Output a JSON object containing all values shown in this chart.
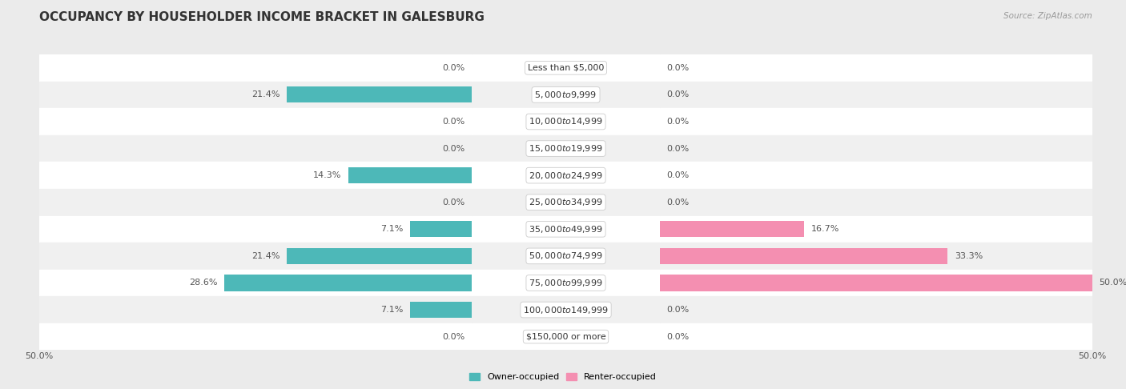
{
  "title": "OCCUPANCY BY HOUSEHOLDER INCOME BRACKET IN GALESBURG",
  "source": "Source: ZipAtlas.com",
  "categories": [
    "Less than $5,000",
    "$5,000 to $9,999",
    "$10,000 to $14,999",
    "$15,000 to $19,999",
    "$20,000 to $24,999",
    "$25,000 to $34,999",
    "$35,000 to $49,999",
    "$50,000 to $74,999",
    "$75,000 to $99,999",
    "$100,000 to $149,999",
    "$150,000 or more"
  ],
  "owner_values": [
    0.0,
    21.4,
    0.0,
    0.0,
    14.3,
    0.0,
    7.1,
    21.4,
    28.6,
    7.1,
    0.0
  ],
  "renter_values": [
    0.0,
    0.0,
    0.0,
    0.0,
    0.0,
    0.0,
    16.7,
    33.3,
    50.0,
    0.0,
    0.0
  ],
  "owner_color": "#4db8b8",
  "renter_color": "#f48fb1",
  "label_color": "#555555",
  "bg_color": "#ebebeb",
  "bar_bg_even": "#ffffff",
  "bar_bg_odd": "#f0f0f0",
  "max_value": 50.0,
  "title_fontsize": 11,
  "label_fontsize": 8,
  "tick_fontsize": 8,
  "source_fontsize": 7.5
}
